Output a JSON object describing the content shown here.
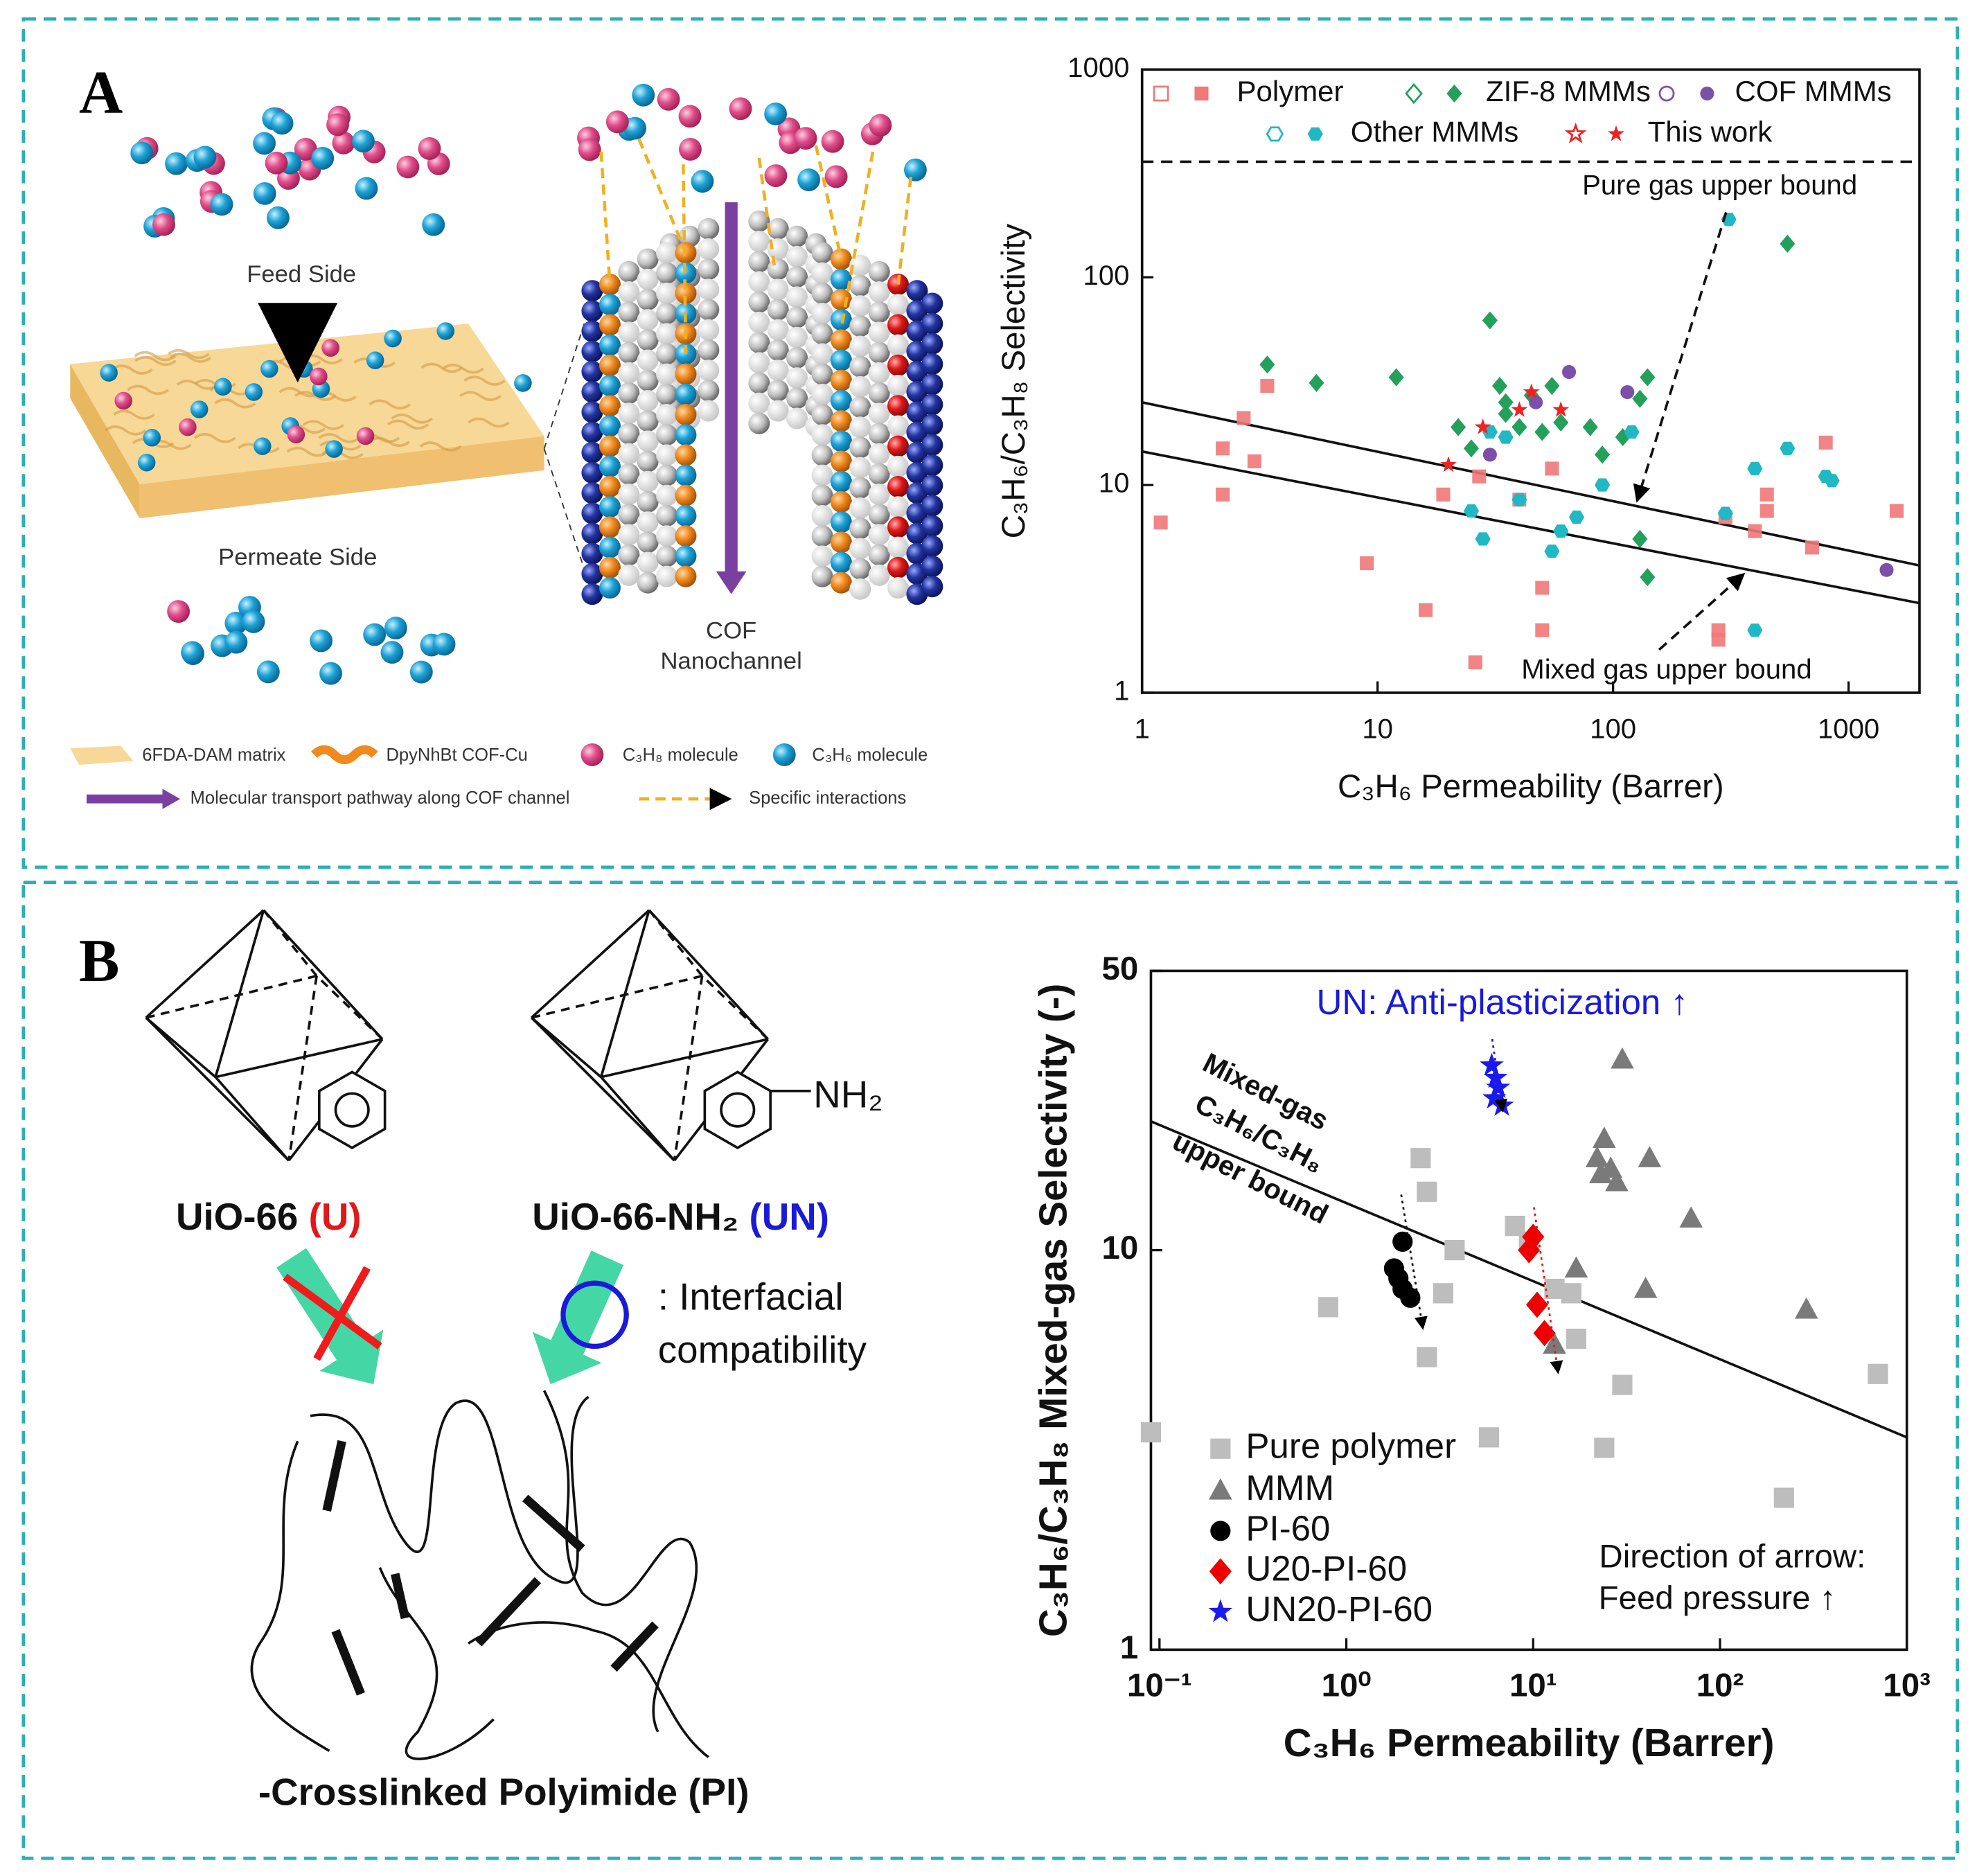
{
  "panel_labels": [
    "A",
    "B"
  ],
  "diagram_a": {
    "feed_side": "Feed Side",
    "permeate_side": "Permeate Side",
    "channel_label": [
      "COF",
      "Nanochannel"
    ],
    "legend": [
      "6FDA-DAM matrix",
      "DpyNhBt COF-Cu",
      "C₃H₈ molecule",
      "C₃H₆ molecule",
      "Molecular transport pathway along COF channel",
      "Specific interactions"
    ]
  },
  "diagram_b": {
    "mof_left": "UiO-66",
    "mof_left_tag": "(U)",
    "mof_right": "UiO-66-NH₂",
    "mof_right_tag": "(UN)",
    "amine": "NH₂",
    "compatibility": [
      ": Interfacial",
      "compatibility"
    ],
    "polymer": "-Crosslinked Polyimide (PI)"
  },
  "chart_data": [
    {
      "type": "scatter",
      "xlabel": "C₃H₆ Permeability (Barrer)",
      "ylabel": "C₃H₆/C₃H₈ Selectivity",
      "xscale": "log",
      "yscale": "log",
      "xlim": [
        1,
        2000
      ],
      "ylim": [
        1,
        1000
      ],
      "xticks": [
        1,
        10,
        100,
        1000
      ],
      "yticks": [
        1,
        10,
        100,
        1000
      ],
      "legend": "top",
      "series": [
        {
          "name": "Polymer",
          "color": "#f07878",
          "marker": "square",
          "x": [
            1.2,
            2.2,
            2.2,
            2.7,
            3,
            3.4,
            9,
            16,
            19,
            27,
            26,
            40,
            50,
            50,
            55,
            280,
            280,
            300,
            400,
            450,
            450,
            700,
            800,
            1600
          ],
          "values": [
            6.6,
            9,
            15,
            21,
            13,
            30,
            4.2,
            2.5,
            9,
            11,
            1.4,
            8.5,
            3.2,
            2,
            12,
            1.8,
            2,
            7,
            6,
            9,
            7.5,
            5,
            16,
            7.5
          ]
        },
        {
          "name": "ZIF-8 MMMs",
          "color": "#23a05a",
          "marker": "diamond",
          "x": [
            3.4,
            5.5,
            12,
            22,
            25,
            30,
            33,
            35,
            35,
            40,
            45,
            50,
            55,
            60,
            80,
            90,
            110,
            130,
            140,
            140,
            130,
            550
          ],
          "values": [
            38,
            31,
            33,
            19,
            15,
            62,
            30,
            25,
            22,
            19,
            27,
            18,
            30,
            20,
            19,
            14,
            17,
            26,
            33,
            3.6,
            5.5,
            145
          ]
        },
        {
          "name": "COF MMMs",
          "color": "#7c4fa8",
          "marker": "circle",
          "x": [
            30,
            47,
            65,
            115,
            1450
          ],
          "values": [
            14,
            25,
            35,
            28,
            3.9
          ]
        },
        {
          "name": "Other MMMs",
          "color": "#1fb8c4",
          "marker": "hexagon",
          "x": [
            25,
            28,
            30,
            35,
            40,
            55,
            60,
            70,
            90,
            120,
            300,
            310,
            400,
            400,
            550,
            800,
            850
          ],
          "values": [
            7.5,
            5.5,
            18,
            17,
            8.5,
            4.8,
            6,
            7,
            10,
            18,
            7.3,
            190,
            12,
            2,
            15,
            11,
            10.5
          ]
        },
        {
          "name": "This work",
          "color": "#ee2222",
          "marker": "star",
          "x": [
            20,
            28,
            40,
            45,
            60
          ],
          "values": [
            12.5,
            19,
            23,
            28,
            23
          ]
        }
      ],
      "reference_lines": [
        {
          "x": [
            1,
            2000
          ],
          "y": [
            360,
            360
          ],
          "style": "dashed"
        },
        {
          "x": [
            1,
            2000
          ],
          "y": [
            25,
            4.1
          ],
          "style": "solid"
        },
        {
          "x": [
            1,
            2000
          ],
          "y": [
            14.5,
            2.7
          ],
          "style": "solid"
        }
      ],
      "annotations": [
        "Pure gas upper bound",
        "Mixed gas upper bound"
      ]
    },
    {
      "type": "scatter",
      "xlabel": "C₃H₆ Permeability (Barrer)",
      "ylabel": "C₃H₆/C₃H₈ Mixed-gas Selectivity (-)",
      "xscale": "log",
      "yscale": "log",
      "xlim": [
        0.09,
        1000
      ],
      "ylim": [
        1,
        50
      ],
      "xticks": [
        {
          "value": 0.1,
          "label": "10⁻¹"
        },
        {
          "value": 1,
          "label": "10⁰"
        },
        {
          "value": 10,
          "label": "10¹"
        },
        {
          "value": 100,
          "label": "10²"
        },
        {
          "value": 1000,
          "label": "10³"
        }
      ],
      "yticks": [
        1,
        10,
        50
      ],
      "legend": "lower left",
      "series": [
        {
          "name": "Pure polymer",
          "color": "#bdbdbd",
          "marker": "square",
          "x": [
            0.09,
            0.8,
            2.5,
            2.7,
            2.7,
            3.3,
            3.8,
            5.8,
            8,
            9.5,
            13,
            16,
            17,
            24,
            30,
            220,
            700
          ],
          "values": [
            3.5,
            7.2,
            17,
            14,
            5.4,
            7.8,
            10,
            3.4,
            11.5,
            10.5,
            8,
            7.8,
            6,
            3.2,
            4.6,
            2.4,
            4.9
          ]
        },
        {
          "name": "MMM",
          "color": "#7a7a7a",
          "marker": "triangle",
          "x": [
            30,
            24,
            22,
            23,
            26,
            28,
            42,
            70,
            17,
            40,
            290,
            13
          ],
          "values": [
            30,
            19,
            17,
            15.5,
            16,
            14.8,
            17,
            12,
            9,
            8,
            7.1,
            5.8
          ]
        },
        {
          "name": "PI-60",
          "color": "#000000",
          "marker": "circle",
          "x": [
            2,
            1.8,
            1.9,
            2,
            2.2
          ],
          "values": [
            10.5,
            9,
            8.5,
            8,
            7.6
          ]
        },
        {
          "name": "U20-PI-60",
          "color": "#ee0000",
          "marker": "diamond",
          "x": [
            10,
            9.5,
            10.5,
            11.5
          ],
          "values": [
            10.8,
            10,
            7.3,
            6.2
          ]
        },
        {
          "name": "UN20-PI-60",
          "color": "#1a1aee",
          "marker": "star",
          "x": [
            6,
            6.3,
            6.5,
            6.2,
            6.8
          ],
          "values": [
            29,
            27,
            25.5,
            24,
            23
          ]
        }
      ],
      "reference_lines": [
        {
          "x": [
            0.09,
            1000
          ],
          "y": [
            21,
            3.4
          ],
          "style": "solid"
        }
      ],
      "line_label": [
        "Mixed-gas",
        "C₃H₆/C₃H₈",
        "upper bound"
      ],
      "annotations": [
        "UN: Anti-plasticization ↑",
        "Direction of arrow:",
        "Feed pressure ↑"
      ]
    }
  ]
}
